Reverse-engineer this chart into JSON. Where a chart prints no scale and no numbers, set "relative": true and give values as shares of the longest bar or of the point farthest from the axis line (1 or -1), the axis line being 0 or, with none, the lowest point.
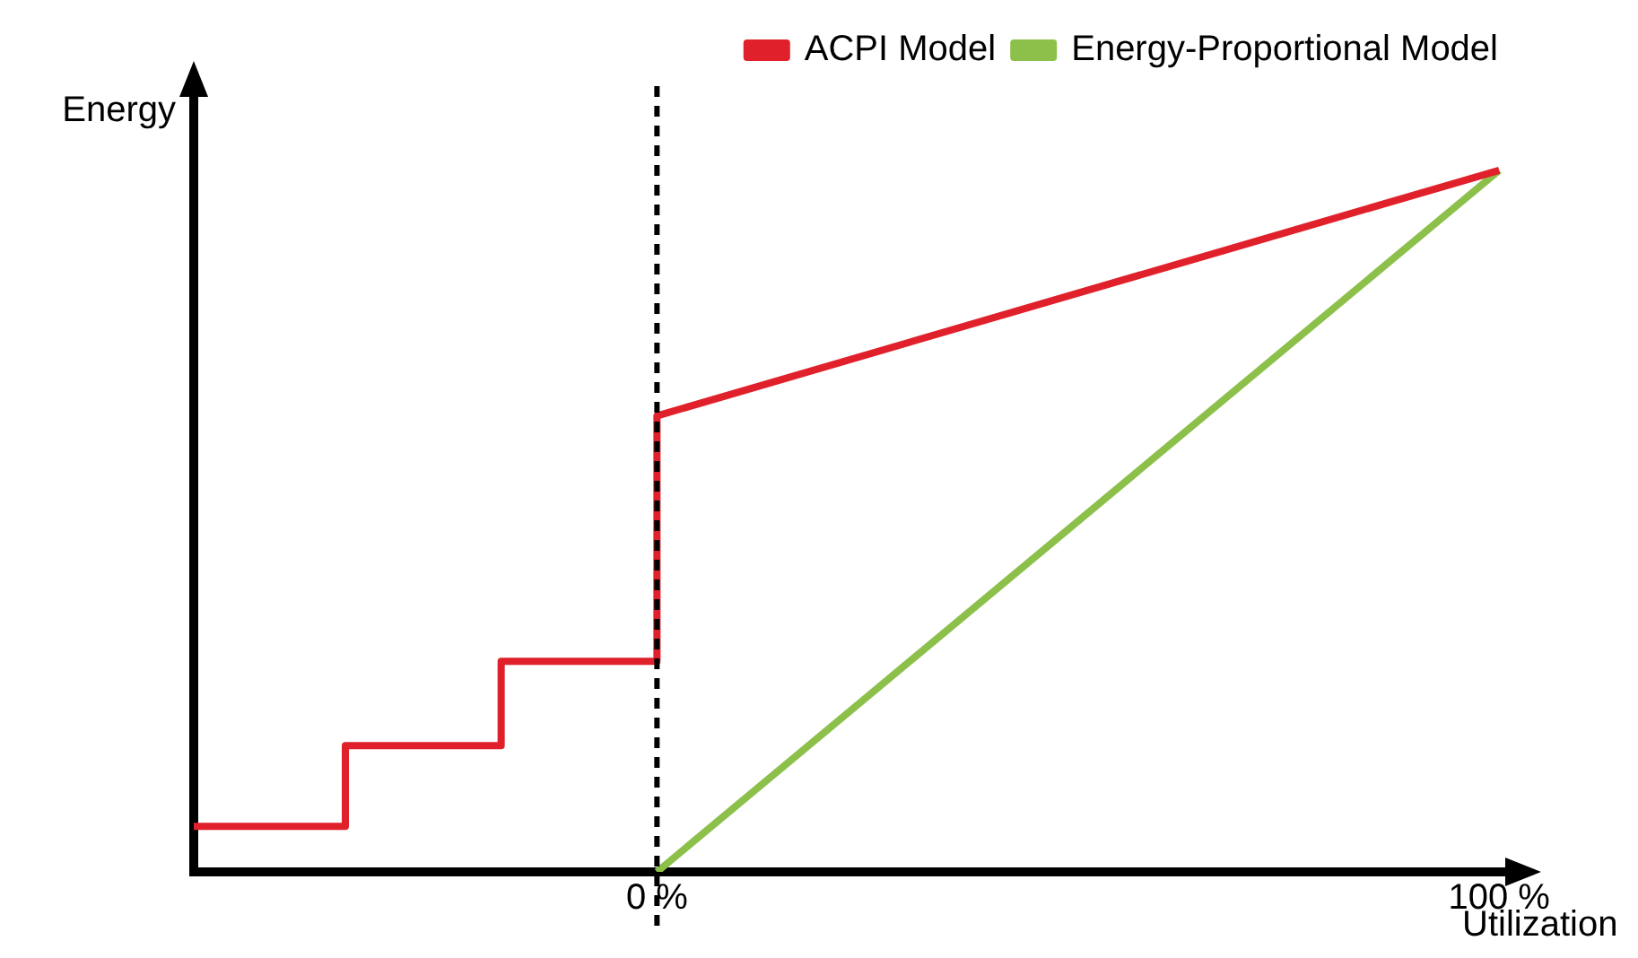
{
  "chart_data": {
    "type": "line",
    "relative": true,
    "xlabel": "Utilization",
    "ylabel": "Energy",
    "xlim": [
      -55,
      102
    ],
    "xticks": [
      {
        "value": 0,
        "label": "0 %"
      },
      {
        "value": 100,
        "label": "100 %"
      }
    ],
    "series": [
      {
        "name": "ACPI Model",
        "color": "#e0202a",
        "x": [
          -55,
          -37,
          -37,
          -18.5,
          -18.5,
          0,
          0,
          100
        ],
        "values": [
          0.065,
          0.065,
          0.18,
          0.18,
          0.3,
          0.3,
          0.65,
          1
        ]
      },
      {
        "name": "Energy-Proportional Model",
        "color": "#8cc04a",
        "x": [
          0,
          100
        ],
        "values": [
          0,
          1
        ]
      }
    ],
    "ref_lines": [
      {
        "axis": "x",
        "value": 0,
        "color": "#000000",
        "line_style": "dashed"
      }
    ],
    "legend": "top right",
    "grid": false,
    "marker": "none",
    "line_style": "solid"
  }
}
